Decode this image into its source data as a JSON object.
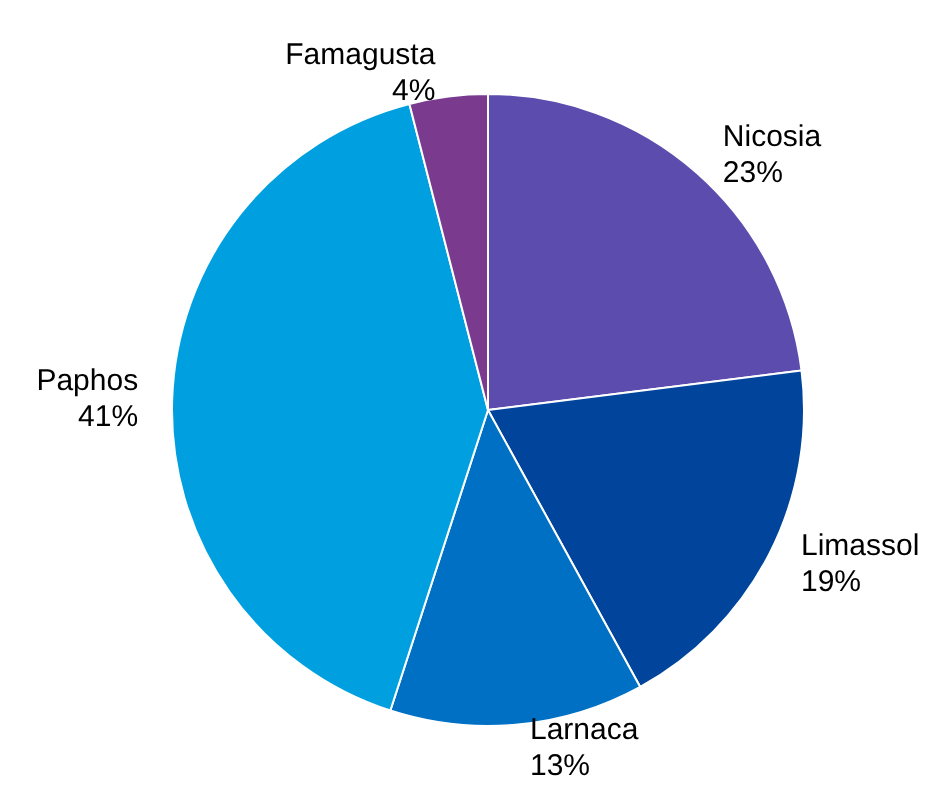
{
  "chart_data": {
    "type": "pie",
    "categories": [
      "Nicosia",
      "Limassol",
      "Larnaca",
      "Paphos",
      "Famagusta"
    ],
    "values": [
      23,
      19,
      13,
      41,
      4
    ],
    "value_labels": [
      "23%",
      "19%",
      "13%",
      "41%",
      "4%"
    ],
    "colors": [
      "#5b4cad",
      "#00449b",
      "#0070c4",
      "#00a0e0",
      "#7a3b8f"
    ],
    "legend": false
  }
}
